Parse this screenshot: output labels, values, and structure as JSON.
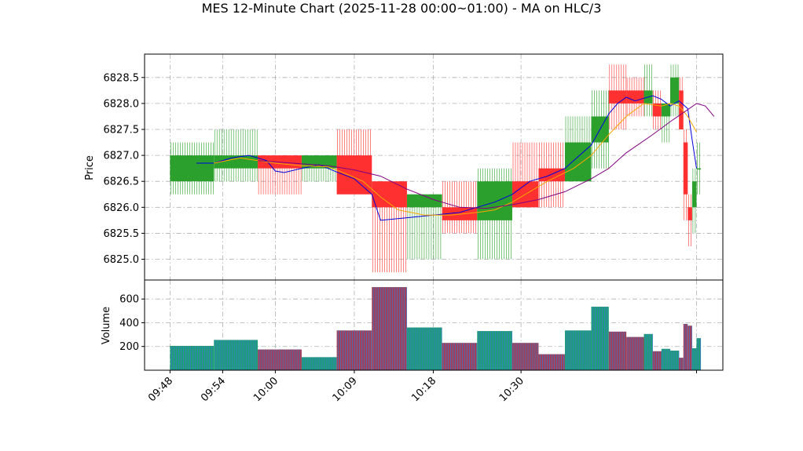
{
  "chart_data": {
    "type": "candlestick",
    "title": "MES 12-Minute Chart (2025-11-28 00:00~01:00) - MA on HLC/3",
    "panels": {
      "price": {
        "ylabel": "Price",
        "ylim": [
          6824.6,
          6828.95
        ],
        "yticks": [
          6825.0,
          6825.5,
          6826.0,
          6826.5,
          6827.0,
          6827.5,
          6828.0,
          6828.5
        ]
      },
      "volume": {
        "ylabel": "Volume",
        "ylim": [
          0,
          760
        ],
        "yticks": [
          200,
          400,
          600
        ]
      }
    },
    "x_tick_labels": [
      "09:48",
      "09:54",
      "10:00",
      "10:09",
      "10:18",
      "10:30",
      ""
    ],
    "x_tick_positions": [
      0,
      6,
      12,
      21,
      30,
      40,
      60
    ],
    "xlim": [
      -2.9,
      63.0
    ],
    "grid": true,
    "colors": {
      "up": "#2ca02c",
      "down": "#ff3030",
      "ma_fast": "#0000dd",
      "ma_mid": "#ffa500",
      "ma_slow": "#800080",
      "volume_up": "#1f9e7a",
      "volume_down": "#a0405a"
    },
    "candles": [
      {
        "t": 0,
        "open": 6826.5,
        "high": 6827.25,
        "low": 6826.25,
        "close": 6827.0,
        "volume": 205
      },
      {
        "t": 5,
        "open": 6826.75,
        "high": 6827.5,
        "low": 6826.5,
        "close": 6827.0,
        "volume": 255
      },
      {
        "t": 10,
        "open": 6827.0,
        "high": 6827.0,
        "low": 6826.25,
        "close": 6826.75,
        "volume": 175
      },
      {
        "t": 15,
        "open": 6826.75,
        "high": 6827.0,
        "low": 6826.5,
        "close": 6827.0,
        "volume": 110
      },
      {
        "t": 19,
        "open": 6827.0,
        "high": 6827.5,
        "low": 6826.25,
        "close": 6826.25,
        "volume": 335
      },
      {
        "t": 23,
        "open": 6826.5,
        "high": 6826.5,
        "low": 6824.75,
        "close": 6826.0,
        "volume": 700
      },
      {
        "t": 27,
        "open": 6826.0,
        "high": 6826.25,
        "low": 6825.0,
        "close": 6826.25,
        "volume": 360
      },
      {
        "t": 31,
        "open": 6826.0,
        "high": 6826.5,
        "low": 6825.5,
        "close": 6825.75,
        "volume": 230
      },
      {
        "t": 35,
        "open": 6825.75,
        "high": 6826.75,
        "low": 6825.0,
        "close": 6826.5,
        "volume": 330
      },
      {
        "t": 39,
        "open": 6826.5,
        "high": 6827.25,
        "low": 6826.0,
        "close": 6826.0,
        "volume": 230
      },
      {
        "t": 42,
        "open": 6826.75,
        "high": 6827.25,
        "low": 6826.0,
        "close": 6826.5,
        "volume": 135
      },
      {
        "t": 45,
        "open": 6826.5,
        "high": 6827.75,
        "low": 6826.5,
        "close": 6827.25,
        "volume": 335
      },
      {
        "t": 48,
        "open": 6827.25,
        "high": 6828.25,
        "low": 6826.75,
        "close": 6827.75,
        "volume": 535
      },
      {
        "t": 50,
        "open": 6828.25,
        "high": 6828.75,
        "low": 6827.5,
        "close": 6828.0,
        "volume": 325
      },
      {
        "t": 52,
        "open": 6828.25,
        "high": 6828.5,
        "low": 6827.75,
        "close": 6828.0,
        "volume": 280
      },
      {
        "t": 54,
        "open": 6828.0,
        "high": 6828.75,
        "low": 6827.75,
        "close": 6828.25,
        "volume": 305
      },
      {
        "t": 55,
        "open": 6828.0,
        "high": 6828.25,
        "low": 6827.5,
        "close": 6827.75,
        "volume": 160
      },
      {
        "t": 56,
        "open": 6827.75,
        "high": 6828.0,
        "low": 6827.25,
        "close": 6828.0,
        "volume": 180
      },
      {
        "t": 57,
        "open": 6828.0,
        "high": 6828.75,
        "low": 6827.75,
        "close": 6828.5,
        "volume": 165
      },
      {
        "t": 58,
        "open": 6828.25,
        "high": 6828.5,
        "low": 6827.5,
        "close": 6827.5,
        "volume": 105
      },
      {
        "t": 58.5,
        "open": 6827.25,
        "high": 6827.5,
        "low": 6825.75,
        "close": 6826.25,
        "volume": 390
      },
      {
        "t": 59,
        "open": 6826.0,
        "high": 6826.25,
        "low": 6825.25,
        "close": 6825.75,
        "volume": 375
      },
      {
        "t": 59.5,
        "open": 6826.0,
        "high": 6826.75,
        "low": 6825.5,
        "close": 6826.5,
        "volume": 185
      },
      {
        "t": 60,
        "open": 6826.75,
        "high": 6827.25,
        "low": 6826.25,
        "close": 6826.75,
        "volume": 270
      }
    ],
    "moving_averages": [
      {
        "key": "ma_fast",
        "points": [
          [
            3,
            6826.85
          ],
          [
            5,
            6826.85
          ],
          [
            7,
            6826.95
          ],
          [
            9,
            6827.0
          ],
          [
            11,
            6826.9
          ],
          [
            12,
            6826.7
          ],
          [
            13,
            6826.67
          ],
          [
            15,
            6826.75
          ],
          [
            17,
            6826.82
          ],
          [
            19,
            6826.68
          ],
          [
            21,
            6826.55
          ],
          [
            23,
            6826.25
          ],
          [
            24,
            6825.75
          ],
          [
            27,
            6825.8
          ],
          [
            30,
            6825.85
          ],
          [
            33,
            6825.9
          ],
          [
            35,
            6826.0
          ],
          [
            37,
            6826.1
          ],
          [
            39,
            6826.25
          ],
          [
            41,
            6826.5
          ],
          [
            43,
            6826.6
          ],
          [
            45,
            6826.75
          ],
          [
            46,
            6826.9
          ],
          [
            48,
            6827.2
          ],
          [
            49,
            6827.5
          ],
          [
            50,
            6827.8
          ],
          [
            51,
            6828.0
          ],
          [
            52,
            6828.12
          ],
          [
            53,
            6828.05
          ],
          [
            54,
            6828.1
          ],
          [
            55,
            6828.15
          ],
          [
            56,
            6828.08
          ],
          [
            57,
            6827.95
          ],
          [
            58,
            6828.05
          ],
          [
            59,
            6827.9
          ],
          [
            59.5,
            6827.3
          ],
          [
            60,
            6826.75
          ]
        ]
      },
      {
        "key": "ma_mid",
        "points": [
          [
            5,
            6826.85
          ],
          [
            8,
            6826.95
          ],
          [
            10,
            6826.9
          ],
          [
            12,
            6826.85
          ],
          [
            15,
            6826.8
          ],
          [
            18,
            6826.78
          ],
          [
            20,
            6826.65
          ],
          [
            22,
            6826.5
          ],
          [
            24,
            6826.2
          ],
          [
            26,
            6825.95
          ],
          [
            29,
            6825.85
          ],
          [
            32,
            6825.85
          ],
          [
            35,
            6825.9
          ],
          [
            37,
            6825.95
          ],
          [
            39,
            6826.1
          ],
          [
            41,
            6826.3
          ],
          [
            43,
            6826.5
          ],
          [
            46,
            6826.75
          ],
          [
            48,
            6827.0
          ],
          [
            50,
            6827.4
          ],
          [
            52,
            6827.75
          ],
          [
            54,
            6828.0
          ],
          [
            56,
            6827.95
          ],
          [
            57,
            6828.0
          ],
          [
            58,
            6827.95
          ],
          [
            59,
            6827.75
          ],
          [
            60,
            6827.45
          ]
        ]
      },
      {
        "key": "ma_slow",
        "points": [
          [
            10,
            6826.9
          ],
          [
            14,
            6826.85
          ],
          [
            18,
            6826.8
          ],
          [
            21,
            6826.72
          ],
          [
            24,
            6826.6
          ],
          [
            27,
            6826.35
          ],
          [
            30,
            6826.15
          ],
          [
            33,
            6826.0
          ],
          [
            36,
            6825.98
          ],
          [
            39,
            6826.05
          ],
          [
            42,
            6826.15
          ],
          [
            45,
            6826.3
          ],
          [
            48,
            6826.55
          ],
          [
            50,
            6826.75
          ],
          [
            52,
            6827.05
          ],
          [
            55,
            6827.4
          ],
          [
            57,
            6827.65
          ],
          [
            59,
            6827.88
          ],
          [
            60,
            6828.0
          ],
          [
            61,
            6827.95
          ],
          [
            62,
            6827.75
          ]
        ]
      }
    ]
  }
}
